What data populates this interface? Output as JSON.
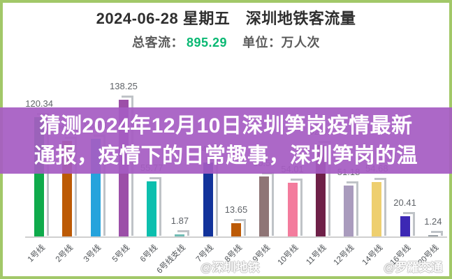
{
  "frame": {
    "border_color": "#a2c868"
  },
  "header": {
    "title": "2024-06-28 星期五　深圳地铁客流量",
    "total_label": "总客流：",
    "total_value": "895.29",
    "unit_label": "单位：万人次",
    "accent_color": "#0ab873"
  },
  "overlay": {
    "bg_color": "#a65cc3",
    "line1": "猜测2024年12月10日深圳笋岗疫情最新",
    "line2": "通报，疫情下的日常趣事，深圳笋岗的温"
  },
  "chart_data": {
    "type": "bar",
    "title": "深圳地铁客流量",
    "date": "2024-06-28 星期五",
    "total": 895.29,
    "unit": "万人次",
    "categories": [
      "1号线",
      "2号线",
      "3号线",
      "5号线",
      "6号线",
      "6号线支线",
      "7号线",
      "8号线",
      "9号线",
      "10号线",
      "11号线",
      "12号线",
      "14号线",
      "16号线",
      "20号线"
    ],
    "values": [
      120.34,
      96.76,
      98.76,
      138.25,
      55.77,
      1.87,
      74.97,
      13.65,
      60.57,
      54.01,
      92.07,
      51.18,
      54.68,
      20.41,
      1.24
    ],
    "colors": [
      "#0faa4b",
      "#bc5a06",
      "#25a3dc",
      "#9c4fa8",
      "#0cbfae",
      "#6fbcb4",
      "#12339b",
      "#bc5a06",
      "#8f7576",
      "#f37c9d",
      "#6e2048",
      "#a99bbd",
      "#eecf6f",
      "#3c28b4",
      "#9aa0a6"
    ],
    "ylim": [
      0,
      150
    ],
    "grid": false,
    "legend": false,
    "value_labels_shown": true
  },
  "watermarks": {
    "left": "@深圳地铁",
    "right": "@罗羅交通"
  }
}
